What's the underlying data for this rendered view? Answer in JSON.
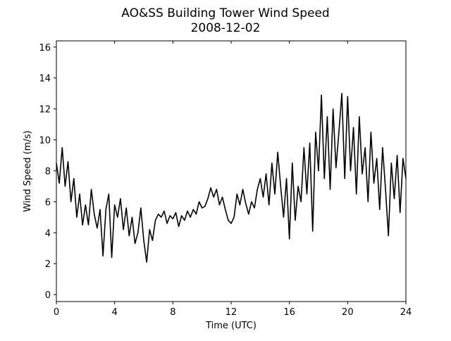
{
  "chart_data": {
    "type": "line",
    "title": "AO&SS Building Tower Wind Speed",
    "subtitle": "2008-12-02",
    "x_label": "Time (UTC)",
    "y_label": "Wind Speed (m/s)",
    "xlim": [
      0,
      24
    ],
    "xticks": [
      0,
      4,
      8,
      12,
      16,
      20,
      24
    ],
    "ylim": [
      -0.45,
      16.4
    ],
    "yticks": [
      0,
      2,
      4,
      6,
      8,
      10,
      12,
      14,
      16
    ],
    "x": [
      0,
      0.2,
      0.4,
      0.6,
      0.8,
      1,
      1.2,
      1.4,
      1.6,
      1.8,
      2,
      2.2,
      2.4,
      2.6,
      2.8,
      3,
      3.2,
      3.4,
      3.6,
      3.8,
      4,
      4.2,
      4.4,
      4.6,
      4.8,
      5,
      5.2,
      5.4,
      5.6,
      5.8,
      6,
      6.2,
      6.4,
      6.6,
      6.8,
      7,
      7.2,
      7.4,
      7.6,
      7.8,
      8,
      8.2,
      8.4,
      8.6,
      8.8,
      9,
      9.2,
      9.4,
      9.6,
      9.8,
      10,
      10.2,
      10.4,
      10.6,
      10.8,
      11,
      11.2,
      11.4,
      11.6,
      11.8,
      12,
      12.2,
      12.4,
      12.6,
      12.8,
      13,
      13.2,
      13.4,
      13.6,
      13.8,
      14,
      14.2,
      14.4,
      14.6,
      14.8,
      15,
      15.2,
      15.4,
      15.6,
      15.8,
      16,
      16.2,
      16.4,
      16.6,
      16.8,
      17,
      17.2,
      17.4,
      17.6,
      17.8,
      18,
      18.2,
      18.4,
      18.6,
      18.8,
      19,
      19.2,
      19.4,
      19.6,
      19.8,
      20,
      20.2,
      20.4,
      20.6,
      20.8,
      21,
      21.2,
      21.4,
      21.6,
      21.8,
      22,
      22.2,
      22.4,
      22.6,
      22.8,
      23,
      23.2,
      23.4,
      23.6,
      23.8,
      24
    ],
    "series": [
      {
        "name": "Wind Speed",
        "color": "#000000",
        "values": [
          8.5,
          7.2,
          9.5,
          7.0,
          8.6,
          6.0,
          7.5,
          5.0,
          6.5,
          4.5,
          5.8,
          4.5,
          6.8,
          5.2,
          4.3,
          5.5,
          2.5,
          5.5,
          6.5,
          2.4,
          5.8,
          5.0,
          6.2,
          4.2,
          5.6,
          3.8,
          5.0,
          3.3,
          4.0,
          5.6,
          3.5,
          2.1,
          4.2,
          3.5,
          4.8,
          5.2,
          5.0,
          5.4,
          4.6,
          5.1,
          4.9,
          5.3,
          4.4,
          5.1,
          4.8,
          5.4,
          5.0,
          5.5,
          5.2,
          6.0,
          5.6,
          5.7,
          6.2,
          6.9,
          6.3,
          6.8,
          5.8,
          6.3,
          5.5,
          4.8,
          4.6,
          5.0,
          6.5,
          5.8,
          6.8,
          5.9,
          5.2,
          6.0,
          5.6,
          6.8,
          7.5,
          6.3,
          7.8,
          5.8,
          8.5,
          6.5,
          9.2,
          7.0,
          5.0,
          7.5,
          3.6,
          8.5,
          4.8,
          7.0,
          6.0,
          9.5,
          6.5,
          9.8,
          4.1,
          10.5,
          8.0,
          12.9,
          7.5,
          11.5,
          6.8,
          12.0,
          8.2,
          10.5,
          13.0,
          7.5,
          12.8,
          8.0,
          10.8,
          6.5,
          11.5,
          7.8,
          9.5,
          6.0,
          10.5,
          7.2,
          8.8,
          5.5,
          9.5,
          6.8,
          3.8,
          8.5,
          6.2,
          9.0,
          5.3,
          8.8,
          7.5
        ]
      }
    ]
  }
}
